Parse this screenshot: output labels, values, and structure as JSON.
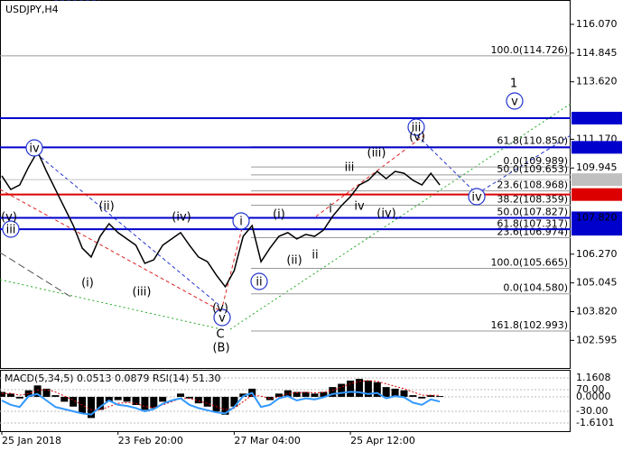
{
  "chart_data": [
    {
      "type": "line",
      "title": "USDJPY,H4",
      "categories": [
        "25 Jan 2018",
        null,
        null,
        null,
        null,
        null,
        null,
        null,
        null,
        null,
        null,
        null,
        null,
        "23 Feb 20:00",
        null,
        null,
        null,
        null,
        null,
        null,
        null,
        null,
        null,
        null,
        null,
        null,
        "27 Mar 04:00",
        null,
        null,
        null,
        null,
        null,
        null,
        null,
        null,
        null,
        null,
        null,
        null,
        "25 Apr 12:00",
        null,
        null,
        null,
        null,
        null,
        null,
        null,
        null,
        null,
        null
      ],
      "series": [
        {
          "color": "#000000",
          "values": [
            109.61,
            109.03,
            109.22,
            109.99,
            110.65,
            109.8,
            109.03,
            108.26,
            107.49,
            106.53,
            106.15,
            107.03,
            107.57,
            107.19,
            106.92,
            106.65,
            105.88,
            106.03,
            106.65,
            106.92,
            107.19,
            106.65,
            106.15,
            105.95,
            105.38,
            104.88,
            105.57,
            107.03,
            107.49,
            105.95,
            106.53,
            107.03,
            107.19,
            106.92,
            107.11,
            107.03,
            107.3,
            107.88,
            108.34,
            108.72,
            109.22,
            109.42,
            109.8,
            109.49,
            109.8,
            109.72,
            109.42,
            109.22,
            109.72,
            109.22
          ]
        }
      ],
      "ylim": [
        101.416,
        117.108
      ],
      "yticks": [
        {
          "value": 116.07,
          "label": "116.070"
        },
        114.845,
        {
          "value": 113.62,
          "label": "113.620"
        },
        {
          "value": 111.17,
          "label": "111.170"
        },
        109.945,
        {
          "value": 106.27,
          "label": "106.270"
        },
        105.045,
        {
          "value": 103.82,
          "label": "103.820"
        },
        102.595
      ],
      "levels": [
        {
          "value": 112.072,
          "color": "#0000cc"
        },
        {
          "value": 110.825,
          "color": "#0000cc"
        },
        {
          "value": 109.449,
          "color": "#c0c0c0"
        },
        {
          "value": 108.813,
          "color": "#dd0000"
        },
        {
          "value": 107.82,
          "label": "107.820",
          "color": "#0000cc"
        },
        {
          "value": 107.333,
          "color": "#0000cc"
        }
      ],
      "fib_levels": [
        {
          "value": 114.726,
          "label": "100.0(114.726)"
        },
        {
          "value": 110.85,
          "label": "61.8(110.850)"
        },
        {
          "value": 109.989,
          "label": "0.0(109.989)"
        },
        {
          "value": 109.653,
          "label": "50.0(109.653)"
        },
        {
          "value": 108.968,
          "label": "23.6(108.968)"
        },
        {
          "value": 108.359,
          "label": "38.2(108.359)"
        },
        {
          "value": 107.827,
          "label": "50.0(107.827)"
        },
        {
          "value": 107.317,
          "label": "61.8(107.317)"
        },
        {
          "value": 106.974,
          "label": "23.6(106.974)"
        },
        {
          "value": 105.665,
          "label": "100.0(105.665)"
        },
        {
          "value": 104.58,
          "label": "0.0(104.580)"
        },
        {
          "value": 102.993,
          "label": "161.8(102.993)"
        }
      ],
      "annotations": [
        {
          "text": "iv",
          "color": "#2233cc",
          "circled": true
        },
        {
          "text": "iii",
          "color": "#2233cc",
          "circled": true
        },
        {
          "text": "v",
          "color": "#2233cc",
          "circled": true
        },
        {
          "text": "i",
          "color": "#2233cc",
          "circled": true
        },
        {
          "text": "ii",
          "color": "#2233cc",
          "circled": true
        },
        {
          "text": "iii",
          "color": "#2233cc",
          "circled": true
        },
        {
          "text": "iv",
          "color": "#2233cc",
          "circled": true
        },
        {
          "text": "v",
          "color": "#2233cc",
          "circled": true
        },
        {
          "text": "(v)",
          "color": "#dd2222",
          "circled": false
        },
        {
          "text": "(i)",
          "color": "#dd2222",
          "circled": false
        },
        {
          "text": "(ii)",
          "color": "#dd2222",
          "circled": false
        },
        {
          "text": "(iii)",
          "color": "#dd2222",
          "circled": false
        },
        {
          "text": "(iv)",
          "color": "#dd2222",
          "circled": false
        },
        {
          "text": "(v)",
          "color": "#dd2222",
          "circled": false
        },
        {
          "text": "(i)",
          "color": "#dd2222",
          "circled": false
        },
        {
          "text": "(ii)",
          "color": "#dd2222",
          "circled": false
        },
        {
          "text": "(iii)",
          "color": "#dd2222",
          "circled": false
        },
        {
          "text": "(iv)",
          "color": "#dd2222",
          "circled": false
        },
        {
          "text": "(v)",
          "color": "#dd2222",
          "circled": false
        },
        {
          "text": "i",
          "color": "#808080",
          "circled": false
        },
        {
          "text": "ii",
          "color": "#808080",
          "circled": false
        },
        {
          "text": "iii",
          "color": "#808080",
          "circled": false
        },
        {
          "text": "iv",
          "color": "#808080",
          "circled": false
        },
        {
          "text": "C",
          "color": "#cc3300",
          "circled": false
        },
        {
          "text": "(B)",
          "color": "#228822",
          "circled": false
        },
        {
          "text": "1",
          "color": "#cc0000",
          "circled": false
        }
      ]
    },
    {
      "type": "indicator",
      "title": "MACD(5,34,5) 0.0513 0.0879 RSI(14) 51.30",
      "series": [
        {
          "color": "#000000",
          "values": [
            0.3,
            0.2,
            -0.1,
            0.4,
            0.7,
            0.5,
            0.1,
            -0.3,
            -0.6,
            -1.0,
            -1.3,
            -0.8,
            -0.3,
            -0.2,
            -0.3,
            -0.5,
            -0.8,
            -0.7,
            -0.3,
            0.0,
            0.2,
            -0.1,
            -0.4,
            -0.6,
            -0.9,
            -1.1,
            -0.6,
            0.2,
            0.5,
            0.0,
            -0.2,
            0.2,
            0.4,
            0.3,
            0.3,
            0.2,
            0.3,
            0.6,
            0.8,
            1.0,
            1.1,
            1.0,
            0.9,
            0.6,
            0.5,
            0.4,
            0.1,
            -0.1,
            0.1,
            0.05
          ]
        },
        {
          "color": "#dd0000",
          "values": [
            0.2,
            0.22,
            0.1,
            0.2,
            0.4,
            0.45,
            0.3,
            0.05,
            -0.2,
            -0.5,
            -0.8,
            -0.8,
            -0.6,
            -0.4,
            -0.35,
            -0.4,
            -0.6,
            -0.65,
            -0.5,
            -0.3,
            -0.1,
            -0.1,
            -0.25,
            -0.4,
            -0.6,
            -0.8,
            -0.7,
            -0.3,
            0.1,
            0.05,
            -0.1,
            0.0,
            0.2,
            0.25,
            0.28,
            0.25,
            0.27,
            0.4,
            0.6,
            0.8,
            0.95,
            1.0,
            0.95,
            0.8,
            0.65,
            0.5,
            0.3,
            0.1,
            0.1,
            0.09
          ]
        },
        {
          "color": "#3399ff",
          "axis": "y2",
          "values": [
            20,
            0,
            -10,
            40,
            50,
            20,
            -10,
            -20,
            -30,
            -40,
            -45,
            -10,
            20,
            0,
            -5,
            -15,
            -30,
            -20,
            5,
            20,
            30,
            0,
            -15,
            -25,
            -35,
            -40,
            -10,
            40,
            55,
            -10,
            0,
            30,
            40,
            20,
            30,
            25,
            35,
            50,
            55,
            60,
            58,
            50,
            55,
            30,
            40,
            35,
            10,
            0,
            25,
            15
          ]
        }
      ],
      "ylim": [
        -2.109,
        1.66
      ],
      "yticks": [
        1.1608,
        {
          "value": 0,
          "label": "0.0000"
        },
        -1.6101
      ],
      "y2lim": [
        -121.7,
        161.7
      ],
      "y2ticks": [
        {
          "value": 70,
          "label": "70.00"
        },
        {
          "value": -30,
          "label": "-30.00"
        }
      ]
    }
  ]
}
